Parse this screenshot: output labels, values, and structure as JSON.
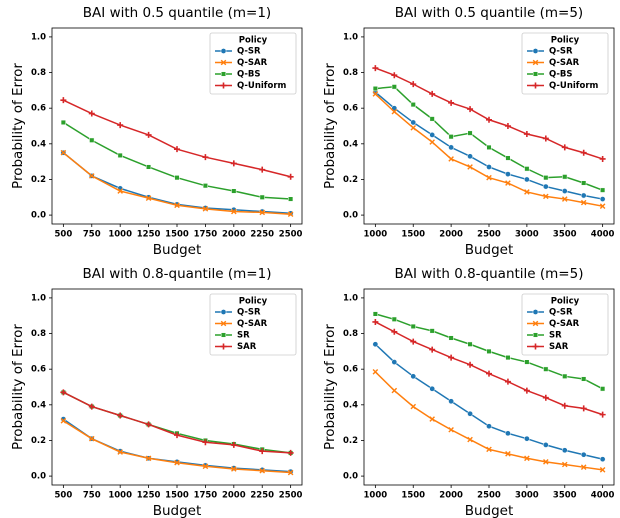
{
  "chart_data": [
    {
      "type": "line",
      "title": "BAI with 0.5 quantile (m=1)",
      "xlabel": "Budget",
      "ylabel": "Probability of Error",
      "x": [
        500,
        750,
        1000,
        1250,
        1500,
        1750,
        2000,
        2250,
        2500
      ],
      "xlim": [
        400,
        2600
      ],
      "xticks": [
        500,
        750,
        1000,
        1250,
        1500,
        1750,
        2000,
        2250,
        2500
      ],
      "ylim": [
        -0.05,
        1.05
      ],
      "yticks": [
        {
          "value": 0,
          "label": "0.0"
        },
        0.2,
        0.4,
        0.6,
        0.8,
        {
          "value": 1,
          "label": "1.0"
        }
      ],
      "legend_title": "Policy",
      "legend": "upper right",
      "series": [
        {
          "name": "Q-SR",
          "color": "#1f77b4",
          "marker": "o",
          "values": [
            0.35,
            0.22,
            0.15,
            0.1,
            0.06,
            0.04,
            0.03,
            0.02,
            0.01
          ]
        },
        {
          "name": "Q-SAR",
          "color": "#ff7f0e",
          "marker": "x",
          "values": [
            0.35,
            0.22,
            0.135,
            0.095,
            0.055,
            0.035,
            0.02,
            0.015,
            0.005
          ]
        },
        {
          "name": "Q-BS",
          "color": "#2ca02c",
          "marker": "s",
          "values": [
            0.52,
            0.42,
            0.335,
            0.27,
            0.21,
            0.165,
            0.135,
            0.1,
            0.09
          ]
        },
        {
          "name": "Q-Uniform",
          "color": "#d62728",
          "marker": "+",
          "values": [
            0.645,
            0.57,
            0.505,
            0.45,
            0.37,
            0.325,
            0.29,
            0.255,
            0.215
          ]
        }
      ]
    },
    {
      "type": "line",
      "title": "BAI with 0.5 quantile (m=5)",
      "xlabel": "Budget",
      "ylabel": "Probability of Error",
      "x": [
        1000,
        1250,
        1500,
        1750,
        2000,
        2250,
        2500,
        2750,
        3000,
        3250,
        3500,
        3750,
        4000
      ],
      "xlim": [
        850,
        4150
      ],
      "xticks": [
        1000,
        1500,
        2000,
        2500,
        3000,
        3500,
        4000
      ],
      "ylim": [
        -0.05,
        1.05
      ],
      "yticks": [
        {
          "value": 0,
          "label": "0.0"
        },
        0.2,
        0.4,
        0.6,
        0.8,
        {
          "value": 1,
          "label": "1.0"
        }
      ],
      "legend_title": "Policy",
      "legend": "upper right",
      "series": [
        {
          "name": "Q-SR",
          "color": "#1f77b4",
          "marker": "o",
          "values": [
            0.69,
            0.6,
            0.52,
            0.45,
            0.38,
            0.33,
            0.27,
            0.23,
            0.2,
            0.16,
            0.135,
            0.11,
            0.09
          ]
        },
        {
          "name": "Q-SAR",
          "color": "#ff7f0e",
          "marker": "x",
          "values": [
            0.68,
            0.58,
            0.49,
            0.41,
            0.315,
            0.27,
            0.21,
            0.18,
            0.13,
            0.105,
            0.09,
            0.07,
            0.05
          ]
        },
        {
          "name": "Q-BS",
          "color": "#2ca02c",
          "marker": "s",
          "values": [
            0.71,
            0.72,
            0.62,
            0.54,
            0.44,
            0.46,
            0.38,
            0.32,
            0.26,
            0.21,
            0.215,
            0.18,
            0.14
          ]
        },
        {
          "name": "Q-Uniform",
          "color": "#d62728",
          "marker": "+",
          "values": [
            0.825,
            0.785,
            0.735,
            0.68,
            0.63,
            0.595,
            0.535,
            0.5,
            0.455,
            0.43,
            0.38,
            0.35,
            0.315
          ]
        }
      ]
    },
    {
      "type": "line",
      "title": "BAI with 0.8-quantile (m=1)",
      "xlabel": "Budget",
      "ylabel": "Probability of Error",
      "x": [
        500,
        750,
        1000,
        1250,
        1500,
        1750,
        2000,
        2250,
        2500
      ],
      "xlim": [
        400,
        2600
      ],
      "xticks": [
        500,
        750,
        1000,
        1250,
        1500,
        1750,
        2000,
        2250,
        2500
      ],
      "ylim": [
        -0.05,
        1.05
      ],
      "yticks": [
        {
          "value": 0,
          "label": "0.0"
        },
        0.2,
        0.4,
        0.6,
        0.8,
        {
          "value": 1,
          "label": "1.0"
        }
      ],
      "legend_title": "Policy",
      "legend": "upper right",
      "series": [
        {
          "name": "Q-SR",
          "color": "#1f77b4",
          "marker": "o",
          "values": [
            0.32,
            0.21,
            0.14,
            0.1,
            0.08,
            0.06,
            0.045,
            0.035,
            0.025
          ]
        },
        {
          "name": "Q-SAR",
          "color": "#ff7f0e",
          "marker": "x",
          "values": [
            0.31,
            0.21,
            0.135,
            0.1,
            0.075,
            0.055,
            0.04,
            0.03,
            0.02
          ]
        },
        {
          "name": "SR",
          "color": "#2ca02c",
          "marker": "s",
          "values": [
            0.47,
            0.39,
            0.34,
            0.29,
            0.24,
            0.2,
            0.18,
            0.15,
            0.13
          ]
        },
        {
          "name": "SAR",
          "color": "#d62728",
          "marker": "+",
          "values": [
            0.47,
            0.39,
            0.34,
            0.29,
            0.23,
            0.19,
            0.175,
            0.14,
            0.13
          ]
        }
      ]
    },
    {
      "type": "line",
      "title": "BAI with 0.8-quantile (m=5)",
      "xlabel": "Budget",
      "ylabel": "Probability of Error",
      "x": [
        1000,
        1250,
        1500,
        1750,
        2000,
        2250,
        2500,
        2750,
        3000,
        3250,
        3500,
        3750,
        4000
      ],
      "xlim": [
        850,
        4150
      ],
      "xticks": [
        1000,
        1500,
        2000,
        2500,
        3000,
        3500,
        4000
      ],
      "ylim": [
        -0.05,
        1.05
      ],
      "yticks": [
        {
          "value": 0,
          "label": "0.0"
        },
        0.2,
        0.4,
        0.6,
        0.8,
        {
          "value": 1,
          "label": "1.0"
        }
      ],
      "legend_title": "Policy",
      "legend": "upper right",
      "series": [
        {
          "name": "Q-SR",
          "color": "#1f77b4",
          "marker": "o",
          "values": [
            0.74,
            0.64,
            0.56,
            0.49,
            0.42,
            0.35,
            0.28,
            0.24,
            0.21,
            0.175,
            0.145,
            0.12,
            0.095
          ]
        },
        {
          "name": "Q-SAR",
          "color": "#ff7f0e",
          "marker": "x",
          "values": [
            0.585,
            0.48,
            0.39,
            0.32,
            0.26,
            0.205,
            0.15,
            0.125,
            0.1,
            0.08,
            0.065,
            0.05,
            0.035
          ]
        },
        {
          "name": "SR",
          "color": "#2ca02c",
          "marker": "s",
          "values": [
            0.91,
            0.88,
            0.84,
            0.815,
            0.775,
            0.74,
            0.7,
            0.665,
            0.64,
            0.6,
            0.56,
            0.545,
            0.49
          ]
        },
        {
          "name": "SAR",
          "color": "#d62728",
          "marker": "+",
          "values": [
            0.865,
            0.81,
            0.755,
            0.71,
            0.665,
            0.625,
            0.575,
            0.53,
            0.48,
            0.44,
            0.395,
            0.38,
            0.345
          ]
        }
      ]
    }
  ]
}
